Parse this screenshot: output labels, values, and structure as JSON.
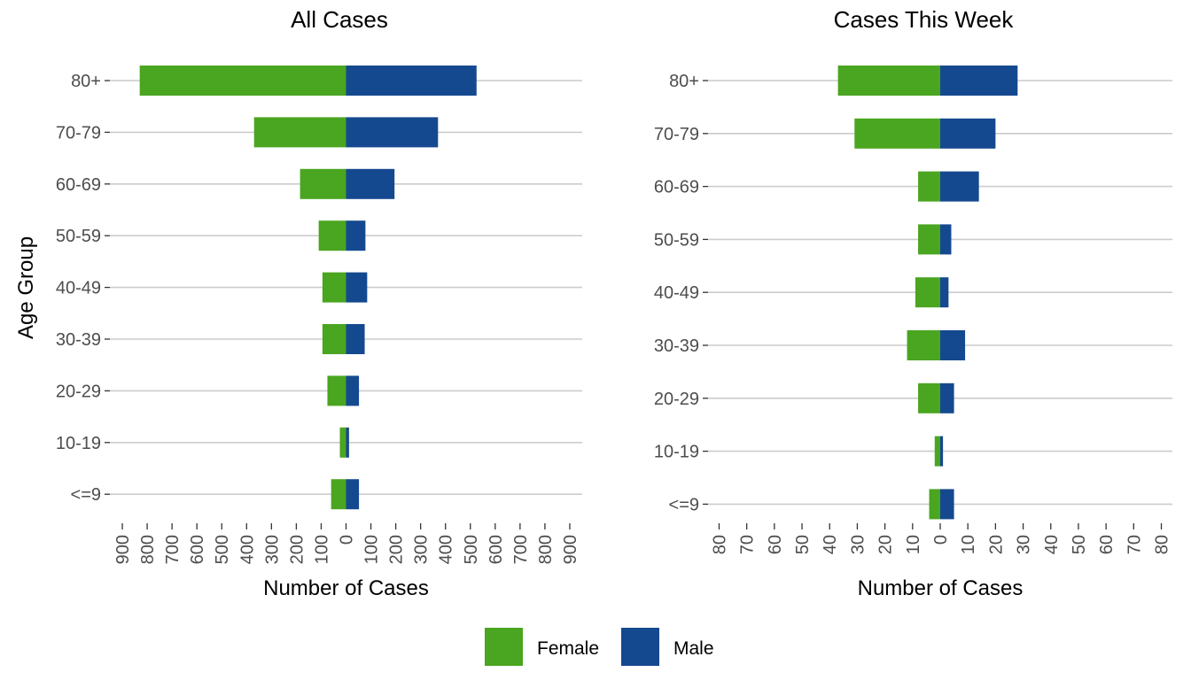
{
  "chart_data": [
    {
      "type": "bar",
      "orientation": "horizontal",
      "layout": "population-pyramid",
      "title": "All Cases",
      "xlabel": "Number of Cases",
      "ylabel": "Age Group",
      "categories": [
        "80+",
        "70-79",
        "60-69",
        "50-59",
        "40-49",
        "30-39",
        "20-29",
        "10-19",
        "<=9"
      ],
      "series": [
        {
          "name": "Female",
          "values": [
            830,
            370,
            185,
            110,
            95,
            95,
            75,
            25,
            60
          ],
          "color": "#4aa520"
        },
        {
          "name": "Male",
          "values": [
            525,
            370,
            195,
            78,
            85,
            75,
            52,
            12,
            52
          ],
          "color": "#15498f"
        }
      ],
      "xlim": [
        -950,
        950
      ],
      "xticks": [
        -900,
        -800,
        -700,
        -600,
        -500,
        -400,
        -300,
        -200,
        -100,
        0,
        100,
        200,
        300,
        400,
        500,
        600,
        700,
        800,
        900
      ],
      "xtick_labels": [
        "900",
        "800",
        "700",
        "600",
        "500",
        "400",
        "300",
        "200",
        "100",
        "0",
        "100",
        "200",
        "300",
        "400",
        "500",
        "600",
        "700",
        "800",
        "900"
      ],
      "grid": "horizontal"
    },
    {
      "type": "bar",
      "orientation": "horizontal",
      "layout": "population-pyramid",
      "title": "Cases This Week",
      "xlabel": "Number of Cases",
      "ylabel": "",
      "categories": [
        "80+",
        "70-79",
        "60-69",
        "50-59",
        "40-49",
        "30-39",
        "20-29",
        "10-19",
        "<=9"
      ],
      "series": [
        {
          "name": "Female",
          "values": [
            37,
            31,
            8,
            8,
            9,
            12,
            8,
            2,
            4
          ],
          "color": "#4aa520"
        },
        {
          "name": "Male",
          "values": [
            28,
            20,
            14,
            4,
            3,
            9,
            5,
            1,
            5
          ],
          "color": "#15498f"
        }
      ],
      "xlim": [
        -84,
        84
      ],
      "xticks": [
        -80,
        -70,
        -60,
        -50,
        -40,
        -30,
        -20,
        -10,
        0,
        10,
        20,
        30,
        40,
        50,
        60,
        70,
        80
      ],
      "xtick_labels": [
        "80",
        "70",
        "60",
        "50",
        "40",
        "30",
        "20",
        "10",
        "0",
        "10",
        "20",
        "30",
        "40",
        "50",
        "60",
        "70",
        "80"
      ],
      "grid": "horizontal"
    }
  ],
  "legend": {
    "position": "bottom",
    "items": [
      {
        "label": "Female",
        "color": "#4aa520"
      },
      {
        "label": "Male",
        "color": "#15498f"
      }
    ]
  }
}
